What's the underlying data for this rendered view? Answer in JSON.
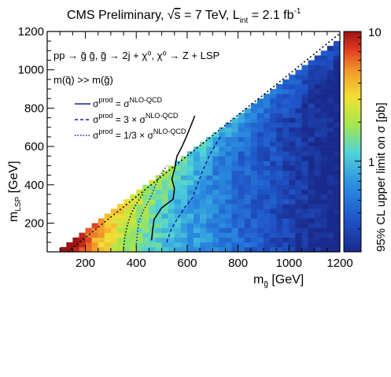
{
  "chart_data": {
    "type": "heatmap",
    "title": {
      "prefix": "CMS Preliminary, ",
      "sqrt": "√",
      "s": "s",
      "energy": " = 7 TeV, L",
      "int_sub": "int",
      "lumi": " = 2.1 fb",
      "lumi_sup": "-1"
    },
    "xlabel": {
      "main": "m",
      "sub": "g̃",
      "unit": " [GeV]"
    },
    "ylabel": {
      "main": "m",
      "sub": "LSP",
      "unit": " [GeV]"
    },
    "zlabel": "95% CL upper limit on σ [pb]",
    "xlim": [
      50,
      1200
    ],
    "ylim": [
      50,
      1200
    ],
    "zlim": [
      0.2,
      10
    ],
    "zscale": "log",
    "x_ticks": [
      200,
      400,
      600,
      800,
      1000,
      1200
    ],
    "y_ticks": [
      200,
      400,
      600,
      800,
      1000,
      1200
    ],
    "z_ticks": [
      1,
      10
    ],
    "cell_size": 25,
    "heat_model": {
      "kinematic_limit": "m_LSP < m_gluino",
      "value_at_low_gluino_pb": 10,
      "value_at_high_gluino_pb": 0.2
    },
    "annotations": {
      "process": "pp → g̃ g̃, g̃ → 2j + χ⁰, χ⁰ → Z + LSP",
      "mass_assumption": "m(q̃) >> m(g̃)"
    },
    "legend": {
      "position": "top-left",
      "entries": [
        {
          "pre": "σ",
          "sup1": "prod",
          "mid": " = σ",
          "sup2": "NLO-QCD",
          "style": "solid",
          "color": "#1a1aa8"
        },
        {
          "pre": "σ",
          "sup1": "prod",
          "mid": " = 3 × σ",
          "sup2": "NLO-QCD",
          "style": "dashed",
          "color": "#1a1aa8"
        },
        {
          "pre": "σ",
          "sup1": "prod",
          "mid": " = 1/3 × σ",
          "sup2": "NLO-QCD",
          "style": "dotted",
          "color": "#1a1aa8"
        }
      ]
    },
    "series": [
      {
        "style": "solid",
        "color": "#000000",
        "points": [
          [
            460,
            110
          ],
          [
            465,
            170
          ],
          [
            470,
            220
          ],
          [
            500,
            280
          ],
          [
            545,
            325
          ],
          [
            550,
            380
          ],
          [
            540,
            430
          ],
          [
            550,
            480
          ],
          [
            560,
            550
          ],
          [
            580,
            600
          ],
          [
            600,
            660
          ],
          [
            630,
            760
          ]
        ]
      },
      {
        "style": "dashed",
        "color": "#1a1aa8",
        "points": [
          [
            520,
            100
          ],
          [
            535,
            160
          ],
          [
            560,
            220
          ],
          [
            590,
            280
          ],
          [
            620,
            330
          ],
          [
            640,
            400
          ],
          [
            660,
            470
          ],
          [
            690,
            560
          ],
          [
            730,
            650
          ]
        ]
      },
      {
        "style": "dotted",
        "color": "#1a1aa8",
        "points": [
          [
            400,
            90
          ],
          [
            405,
            150
          ],
          [
            410,
            210
          ],
          [
            430,
            270
          ],
          [
            455,
            330
          ],
          [
            470,
            380
          ],
          [
            490,
            440
          ],
          [
            520,
            500
          ]
        ]
      },
      {
        "style": "dotted",
        "color": "#000000",
        "points": [
          [
            350,
            70
          ],
          [
            355,
            130
          ],
          [
            365,
            190
          ],
          [
            380,
            250
          ],
          [
            400,
            300
          ],
          [
            430,
            360
          ]
        ]
      }
    ],
    "colors": {
      "frame": "#000000",
      "diagonal": "#000000",
      "legend_line": "#1a1aa8"
    }
  }
}
